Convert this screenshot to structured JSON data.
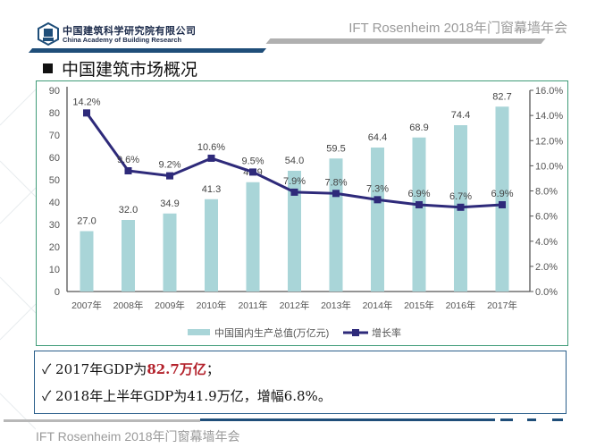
{
  "header": {
    "org_name_cn": "中国建筑科学研究院有限公司",
    "org_name_en": "China Academy of Building Research",
    "event_title": "IFT Rosenheim 2018年门窗幕墙年会"
  },
  "section": {
    "title": "中国建筑市场概况"
  },
  "watermark": "IFT Rosenheim 2018年门窗幕墙年会",
  "colors": {
    "bar": "#a9d5d8",
    "line": "#2e2a7a",
    "frame": "#3f9b78",
    "highlight": "#b3212b",
    "brand_blue": "#1f4e79"
  },
  "chart_data": {
    "type": "bar+line",
    "title": "",
    "categories": [
      "2007年",
      "2008年",
      "2009年",
      "2010年",
      "2011年",
      "2012年",
      "2013年",
      "2014年",
      "2015年",
      "2016年",
      "2017年"
    ],
    "series": [
      {
        "name": "中国国内生产总值(万亿元)",
        "type": "bar",
        "axis": "left",
        "values": [
          27.0,
          32.0,
          34.9,
          41.3,
          48.9,
          54.0,
          59.5,
          64.4,
          68.9,
          74.4,
          82.7
        ],
        "labels": [
          "27.0",
          "32.0",
          "34.9",
          "41.3",
          "48.9",
          "54.0",
          "59.5",
          "64.4",
          "68.9",
          "74.4",
          "82.7"
        ]
      },
      {
        "name": "增长率",
        "type": "line",
        "axis": "right",
        "values": [
          14.2,
          9.6,
          9.2,
          10.6,
          9.5,
          7.9,
          7.8,
          7.3,
          6.9,
          6.7,
          6.9
        ],
        "labels": [
          "14.2%",
          "9.6%",
          "9.2%",
          "10.6%",
          "9.5%",
          "7.9%",
          "7.8%",
          "7.3%",
          "6.9%",
          "6.7%",
          "6.9%"
        ]
      }
    ],
    "y_left": {
      "lim": [
        0,
        90
      ],
      "ticks": [
        "0",
        "10",
        "20",
        "30",
        "40",
        "50",
        "60",
        "70",
        "80",
        "90"
      ]
    },
    "y_right": {
      "lim": [
        0,
        16
      ],
      "ticks": [
        "0.0%",
        "2.0%",
        "4.0%",
        "6.0%",
        "8.0%",
        "10.0%",
        "12.0%",
        "14.0%",
        "16.0%"
      ]
    },
    "grid": false,
    "legend": "bottom"
  },
  "bullets": [
    {
      "check": "✓",
      "prefix": "2017年GDP为",
      "highlight": "82.7万亿",
      "suffix": "；"
    },
    {
      "check": "✓",
      "prefix": "2018年上半年GDP为41.9万亿，增幅6.8%。",
      "highlight": "",
      "suffix": ""
    }
  ]
}
